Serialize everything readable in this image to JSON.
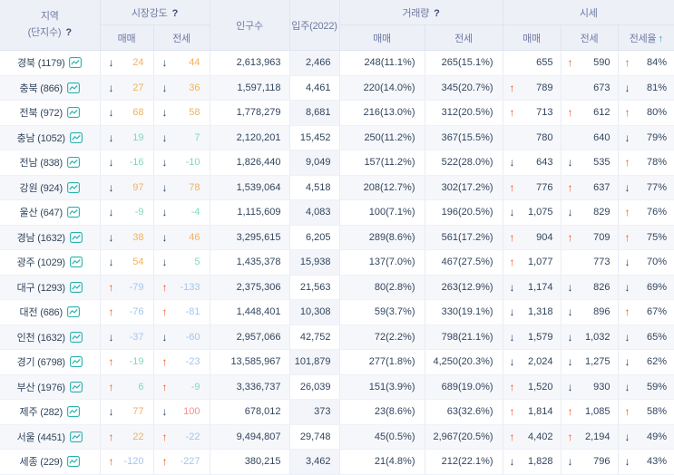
{
  "header": {
    "region_line1": "지역",
    "region_line2": "(단지수)",
    "strength": "시장강도",
    "population": "인구수",
    "movein": "입주(2022)",
    "volume": "거래량",
    "price": "시세",
    "sale": "매매",
    "jeonse": "전세",
    "jeonse_ratio": "전세율"
  },
  "glyphs": {
    "help": "?",
    "sort_up": "↑",
    "arrow_up": "↑",
    "arrow_down": "↓",
    "chart_icon": "line-chart-icon"
  },
  "colors": {
    "up_arrow": "#f0541e",
    "down_arrow": "#1f3f63",
    "value_orange": "#f2b25c",
    "value_green": "#7fdab8",
    "value_blue": "#a3c6f1",
    "value_red": "#f29090",
    "default_text": "#32455e",
    "header_text": "#6e79a1",
    "sort_arrow": "#21a3c7",
    "chart_icon": "#2bb3ab",
    "row_alt_bg": "#f6f7fb",
    "header_bg": "#eef0f8"
  },
  "rows": [
    {
      "region": "경북 (1179)",
      "strength_sale": {
        "dir": "down",
        "value": "24",
        "color": "orange"
      },
      "strength_jeonse": {
        "dir": "down",
        "value": "44",
        "color": "orange"
      },
      "population": "2,613,963",
      "movein": "2,466",
      "volume_sale": "248(11.1%)",
      "volume_jeonse": "265(15.1%)",
      "price_sale": {
        "dir": "",
        "value": "655"
      },
      "price_jeonse": {
        "dir": "up",
        "value": "590"
      },
      "jeonse_ratio": {
        "dir": "up",
        "value": "84%"
      }
    },
    {
      "region": "충북 (866)",
      "strength_sale": {
        "dir": "down",
        "value": "27",
        "color": "orange"
      },
      "strength_jeonse": {
        "dir": "down",
        "value": "36",
        "color": "orange"
      },
      "population": "1,597,118",
      "movein": "4,461",
      "volume_sale": "220(14.0%)",
      "volume_jeonse": "345(20.7%)",
      "price_sale": {
        "dir": "up",
        "value": "789"
      },
      "price_jeonse": {
        "dir": "",
        "value": "673"
      },
      "jeonse_ratio": {
        "dir": "down",
        "value": "81%"
      }
    },
    {
      "region": "전북 (972)",
      "strength_sale": {
        "dir": "down",
        "value": "68",
        "color": "orange"
      },
      "strength_jeonse": {
        "dir": "down",
        "value": "58",
        "color": "orange"
      },
      "population": "1,778,279",
      "movein": "8,681",
      "volume_sale": "216(13.0%)",
      "volume_jeonse": "312(20.5%)",
      "price_sale": {
        "dir": "up",
        "value": "713"
      },
      "price_jeonse": {
        "dir": "up",
        "value": "612"
      },
      "jeonse_ratio": {
        "dir": "up",
        "value": "80%"
      }
    },
    {
      "region": "충남 (1052)",
      "strength_sale": {
        "dir": "down",
        "value": "19",
        "color": "green"
      },
      "strength_jeonse": {
        "dir": "down",
        "value": "7",
        "color": "green"
      },
      "population": "2,120,201",
      "movein": "15,452",
      "volume_sale": "250(11.2%)",
      "volume_jeonse": "367(15.5%)",
      "price_sale": {
        "dir": "",
        "value": "780"
      },
      "price_jeonse": {
        "dir": "",
        "value": "640"
      },
      "jeonse_ratio": {
        "dir": "down",
        "value": "79%"
      }
    },
    {
      "region": "전남 (838)",
      "strength_sale": {
        "dir": "down",
        "value": "-16",
        "color": "green"
      },
      "strength_jeonse": {
        "dir": "down",
        "value": "-10",
        "color": "green"
      },
      "population": "1,826,440",
      "movein": "9,049",
      "volume_sale": "157(11.2%)",
      "volume_jeonse": "522(28.0%)",
      "price_sale": {
        "dir": "down",
        "value": "643"
      },
      "price_jeonse": {
        "dir": "down",
        "value": "535"
      },
      "jeonse_ratio": {
        "dir": "up",
        "value": "78%"
      }
    },
    {
      "region": "강원 (924)",
      "strength_sale": {
        "dir": "down",
        "value": "97",
        "color": "orange"
      },
      "strength_jeonse": {
        "dir": "down",
        "value": "78",
        "color": "orange"
      },
      "population": "1,539,064",
      "movein": "4,518",
      "volume_sale": "208(12.7%)",
      "volume_jeonse": "302(17.2%)",
      "price_sale": {
        "dir": "up",
        "value": "776"
      },
      "price_jeonse": {
        "dir": "up",
        "value": "637"
      },
      "jeonse_ratio": {
        "dir": "down",
        "value": "77%"
      }
    },
    {
      "region": "울산 (647)",
      "strength_sale": {
        "dir": "down",
        "value": "-9",
        "color": "green"
      },
      "strength_jeonse": {
        "dir": "down",
        "value": "-4",
        "color": "green"
      },
      "population": "1,115,609",
      "movein": "4,083",
      "volume_sale": "100(7.1%)",
      "volume_jeonse": "196(20.5%)",
      "price_sale": {
        "dir": "down",
        "value": "1,075"
      },
      "price_jeonse": {
        "dir": "down",
        "value": "829"
      },
      "jeonse_ratio": {
        "dir": "up",
        "value": "76%"
      }
    },
    {
      "region": "경남 (1632)",
      "strength_sale": {
        "dir": "down",
        "value": "38",
        "color": "orange"
      },
      "strength_jeonse": {
        "dir": "down",
        "value": "46",
        "color": "orange"
      },
      "population": "3,295,615",
      "movein": "6,205",
      "volume_sale": "289(8.6%)",
      "volume_jeonse": "561(17.2%)",
      "price_sale": {
        "dir": "up",
        "value": "904"
      },
      "price_jeonse": {
        "dir": "up",
        "value": "709"
      },
      "jeonse_ratio": {
        "dir": "up",
        "value": "75%"
      }
    },
    {
      "region": "광주 (1029)",
      "strength_sale": {
        "dir": "down",
        "value": "54",
        "color": "orange"
      },
      "strength_jeonse": {
        "dir": "down",
        "value": "5",
        "color": "green"
      },
      "population": "1,435,378",
      "movein": "15,938",
      "volume_sale": "137(7.0%)",
      "volume_jeonse": "467(27.5%)",
      "price_sale": {
        "dir": "up",
        "value": "1,077"
      },
      "price_jeonse": {
        "dir": "",
        "value": "773"
      },
      "jeonse_ratio": {
        "dir": "down",
        "value": "70%"
      }
    },
    {
      "region": "대구 (1293)",
      "strength_sale": {
        "dir": "up",
        "value": "-79",
        "color": "blue"
      },
      "strength_jeonse": {
        "dir": "up",
        "value": "-133",
        "color": "blue"
      },
      "population": "2,375,306",
      "movein": "21,563",
      "volume_sale": "80(2.8%)",
      "volume_jeonse": "263(12.9%)",
      "price_sale": {
        "dir": "down",
        "value": "1,174"
      },
      "price_jeonse": {
        "dir": "down",
        "value": "826"
      },
      "jeonse_ratio": {
        "dir": "down",
        "value": "69%"
      }
    },
    {
      "region": "대전 (686)",
      "strength_sale": {
        "dir": "up",
        "value": "-76",
        "color": "blue"
      },
      "strength_jeonse": {
        "dir": "up",
        "value": "-81",
        "color": "blue"
      },
      "population": "1,448,401",
      "movein": "10,308",
      "volume_sale": "59(3.7%)",
      "volume_jeonse": "330(19.1%)",
      "price_sale": {
        "dir": "down",
        "value": "1,318"
      },
      "price_jeonse": {
        "dir": "down",
        "value": "896"
      },
      "jeonse_ratio": {
        "dir": "up",
        "value": "67%"
      }
    },
    {
      "region": "인천 (1632)",
      "strength_sale": {
        "dir": "down",
        "value": "-37",
        "color": "blue"
      },
      "strength_jeonse": {
        "dir": "down",
        "value": "-60",
        "color": "blue"
      },
      "population": "2,957,066",
      "movein": "42,752",
      "volume_sale": "72(2.2%)",
      "volume_jeonse": "798(21.1%)",
      "price_sale": {
        "dir": "down",
        "value": "1,579"
      },
      "price_jeonse": {
        "dir": "down",
        "value": "1,032"
      },
      "jeonse_ratio": {
        "dir": "down",
        "value": "65%"
      }
    },
    {
      "region": "경기 (6798)",
      "strength_sale": {
        "dir": "up",
        "value": "-19",
        "color": "green"
      },
      "strength_jeonse": {
        "dir": "up",
        "value": "-23",
        "color": "blue"
      },
      "population": "13,585,967",
      "movein": "101,879",
      "volume_sale": "277(1.8%)",
      "volume_jeonse": "4,250(20.3%)",
      "price_sale": {
        "dir": "down",
        "value": "2,024"
      },
      "price_jeonse": {
        "dir": "down",
        "value": "1,275"
      },
      "jeonse_ratio": {
        "dir": "down",
        "value": "62%"
      }
    },
    {
      "region": "부산 (1976)",
      "strength_sale": {
        "dir": "up",
        "value": "6",
        "color": "green"
      },
      "strength_jeonse": {
        "dir": "up",
        "value": "-9",
        "color": "green"
      },
      "population": "3,336,737",
      "movein": "26,039",
      "volume_sale": "151(3.9%)",
      "volume_jeonse": "689(19.0%)",
      "price_sale": {
        "dir": "up",
        "value": "1,520"
      },
      "price_jeonse": {
        "dir": "down",
        "value": "930"
      },
      "jeonse_ratio": {
        "dir": "down",
        "value": "59%"
      }
    },
    {
      "region": "제주 (282)",
      "strength_sale": {
        "dir": "down",
        "value": "77",
        "color": "orange"
      },
      "strength_jeonse": {
        "dir": "down",
        "value": "100",
        "color": "red"
      },
      "population": "678,012",
      "movein": "373",
      "volume_sale": "23(8.6%)",
      "volume_jeonse": "63(32.6%)",
      "price_sale": {
        "dir": "up",
        "value": "1,814"
      },
      "price_jeonse": {
        "dir": "up",
        "value": "1,085"
      },
      "jeonse_ratio": {
        "dir": "up",
        "value": "58%"
      }
    },
    {
      "region": "서울 (4451)",
      "strength_sale": {
        "dir": "up",
        "value": "22",
        "color": "orange"
      },
      "strength_jeonse": {
        "dir": "up",
        "value": "-22",
        "color": "blue"
      },
      "population": "9,494,807",
      "movein": "29,748",
      "volume_sale": "45(0.5%)",
      "volume_jeonse": "2,967(20.5%)",
      "price_sale": {
        "dir": "up",
        "value": "4,402"
      },
      "price_jeonse": {
        "dir": "up",
        "value": "2,194"
      },
      "jeonse_ratio": {
        "dir": "down",
        "value": "49%"
      }
    },
    {
      "region": "세종 (229)",
      "strength_sale": {
        "dir": "up",
        "value": "-120",
        "color": "blue"
      },
      "strength_jeonse": {
        "dir": "up",
        "value": "-227",
        "color": "blue"
      },
      "population": "380,215",
      "movein": "3,462",
      "volume_sale": "21(4.8%)",
      "volume_jeonse": "212(22.1%)",
      "price_sale": {
        "dir": "down",
        "value": "1,828"
      },
      "price_jeonse": {
        "dir": "down",
        "value": "796"
      },
      "jeonse_ratio": {
        "dir": "down",
        "value": "43%"
      }
    }
  ]
}
